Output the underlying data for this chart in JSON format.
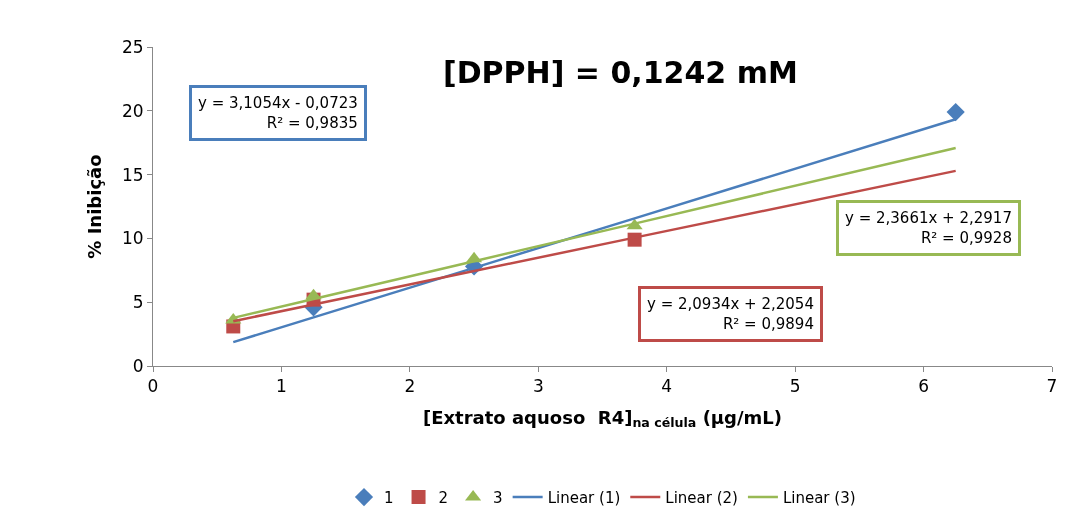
{
  "chart_data": {
    "type": "scatter",
    "title": "[DPPH] = 0,1242 mM",
    "xlabel": "[Extrato aquoso  R4]$_{na célula}$ (µg/mL)",
    "ylabel": "% Inibição",
    "x": [
      0.625,
      1.25,
      2.5,
      3.75,
      6.25
    ],
    "series": [
      {
        "name": "1",
        "color": "#4a7ebb",
        "marker": "diamond",
        "values": [
          null,
          4.6,
          7.8,
          null,
          19.9
        ]
      },
      {
        "name": "2",
        "color": "#be4b48",
        "marker": "square",
        "values": [
          3.1,
          5.2,
          null,
          9.9,
          null
        ]
      },
      {
        "name": "3",
        "color": "#98b954",
        "marker": "triangle",
        "values": [
          3.6,
          5.5,
          8.4,
          11.0,
          null
        ]
      },
      {
        "name": "Linear (1)",
        "type": "line",
        "color": "#4a7ebb",
        "marker": "none",
        "x": [
          0.625,
          1.25,
          2.5,
          3.75,
          6.25
        ],
        "values": [
          1.87,
          3.81,
          7.69,
          11.57,
          19.34
        ]
      },
      {
        "name": "Linear (2)",
        "type": "line",
        "color": "#be4b48",
        "marker": "none",
        "x": [
          0.625,
          1.25,
          2.5,
          3.75,
          6.25
        ],
        "values": [
          3.51,
          4.82,
          7.44,
          10.06,
          15.29
        ]
      },
      {
        "name": "Linear (3)",
        "type": "line",
        "color": "#98b954",
        "marker": "none",
        "x": [
          0.625,
          1.25,
          2.5,
          3.75,
          6.25
        ],
        "values": [
          3.77,
          5.25,
          8.21,
          11.16,
          17.09
        ]
      }
    ],
    "annotations": [
      "y = 3,1054x - 0,0723\nR² = 0,9835",
      "y = 2,0934x + 2,2054\nR² = 0,9894",
      "y = 2,3661x + 2,2917\nR² = 0,9928"
    ],
    "xlim": [
      0,
      7
    ],
    "xticks": [
      0,
      1,
      2,
      3,
      4,
      5,
      6,
      7
    ],
    "ylim": [
      0,
      25
    ],
    "yticks": [
      0,
      5,
      10,
      15,
      20,
      25
    ],
    "grid": false,
    "legend": "bottom"
  }
}
